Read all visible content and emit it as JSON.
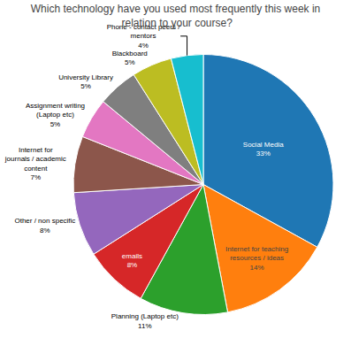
{
  "chart_data": {
    "type": "pie",
    "title": "Which technology have you used most frequently this week in\n relation to your course?",
    "values": [
      33,
      14,
      11,
      8,
      8,
      7,
      5,
      5,
      5,
      4
    ],
    "value_labels": [
      "Social Media\n33%",
      "Internet for teaching\nresources / ideas\n14%",
      "Planning (Laptop etc)\n11%",
      "emails\n8%",
      "Other / non specific\n8%",
      "Internet for\njournals / academic\ncontent\n7%",
      "Assignment writing\n(Laptop etc)\n5%",
      "University Library\n5%",
      "Blackboard\n5%",
      "Phone - contact peers /\nmentors\n4%"
    ],
    "data_labels": true
  }
}
